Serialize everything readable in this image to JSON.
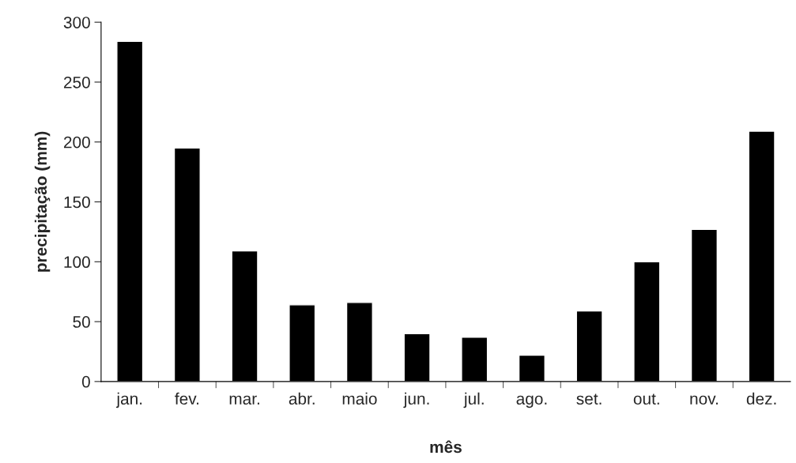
{
  "chart_data": {
    "type": "bar",
    "xlabel": "mês",
    "ylabel": "precipitação (mm)",
    "categories": [
      "jan.",
      "fev.",
      "mar.",
      "abr.",
      "maio",
      "jun.",
      "jul.",
      "ago.",
      "set.",
      "out.",
      "nov.",
      "dez."
    ],
    "values": [
      284,
      195,
      109,
      64,
      66,
      40,
      37,
      22,
      59,
      100,
      127,
      209
    ],
    "color": "#000000",
    "ylim": [
      0,
      300
    ],
    "yticks": [
      0,
      50,
      100,
      150,
      200,
      250,
      300
    ],
    "grid": false,
    "legend": false
  }
}
